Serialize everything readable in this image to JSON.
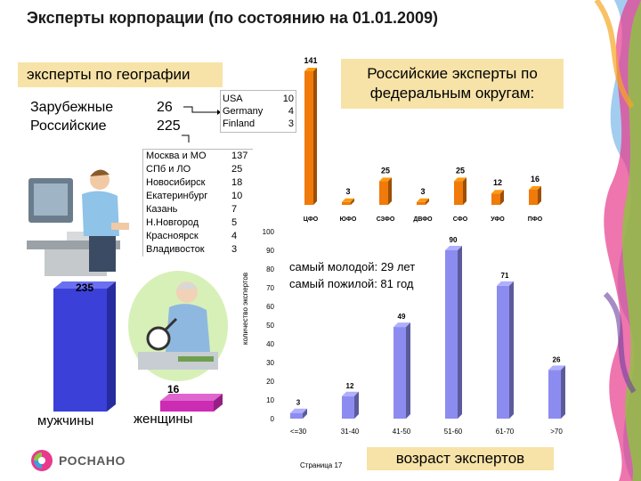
{
  "title": "Эксперты корпорации (по состоянию на 01.01.2009)",
  "geo": {
    "header": "эксперты по географии",
    "foreign_label": "Зарубежные",
    "foreign_count": "26",
    "russian_label": "Российские",
    "russian_count": "225",
    "foreign_countries": [
      {
        "name": "USA",
        "count": "10"
      },
      {
        "name": "Germany",
        "count": "4"
      },
      {
        "name": "Finland",
        "count": "3"
      }
    ],
    "cities": [
      {
        "name": "Москва и МО",
        "count": "137"
      },
      {
        "name": "СПб и ЛО",
        "count": "25"
      },
      {
        "name": "Новосибирск",
        "count": "18"
      },
      {
        "name": "Екатеринбург",
        "count": "10"
      },
      {
        "name": "Казань",
        "count": "7"
      },
      {
        "name": "Н.Новгород",
        "count": "5"
      },
      {
        "name": "Красноярск",
        "count": "4"
      },
      {
        "name": "Владивосток",
        "count": "3"
      }
    ]
  },
  "gender": {
    "men_label": "мужчины",
    "men_count": "235",
    "women_label": "женщины",
    "women_count": "16",
    "men_color": "#3a40d8",
    "women_color": "#cc2bb4"
  },
  "federal": {
    "header": "Российские эксперты по федеральным округам:"
  },
  "age": {
    "note_young": "самый молодой: 29 лет",
    "note_old": "самый пожилой: 81 год",
    "footer": "возраст экспертов"
  },
  "chart_data": [
    {
      "type": "bar",
      "title": "Российские эксперты по федеральным округам:",
      "categories": [
        "ЦФО",
        "ЮФО",
        "СЗФО",
        "ДВФО",
        "СФО",
        "УФО",
        "ПФО"
      ],
      "values": [
        141,
        3,
        25,
        3,
        25,
        12,
        16
      ],
      "color": "#f07a0a"
    },
    {
      "type": "bar",
      "title": "",
      "ylabel": "количество экспертов",
      "categories": [
        "<=30",
        "31-40",
        "41-50",
        "51-60",
        "61-70",
        ">70"
      ],
      "values": [
        3,
        12,
        49,
        90,
        71,
        26
      ],
      "ylim": [
        0,
        100
      ],
      "yticks": [
        0,
        10,
        20,
        30,
        40,
        50,
        60,
        70,
        80,
        90,
        100
      ],
      "color": "#8c8cf0"
    }
  ],
  "footer": {
    "logo": "РОСНАНО",
    "page": "Страница 17"
  }
}
